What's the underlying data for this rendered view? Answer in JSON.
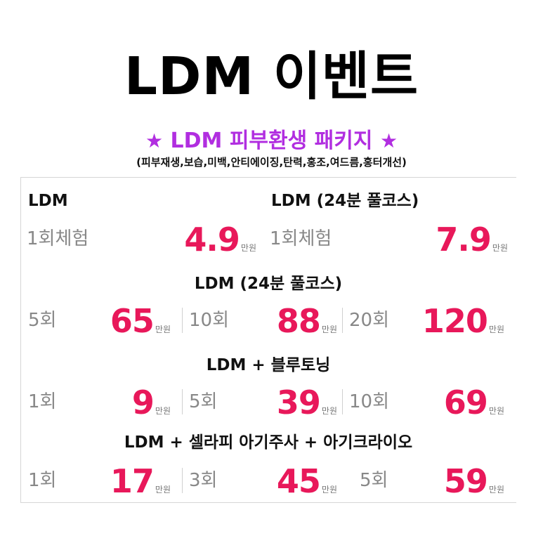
{
  "title": "LDM 이벤트",
  "subtitle": {
    "star": "★",
    "text": "LDM 피부환생 패키지"
  },
  "tags": "(피부재생,보습,미백,안티에이징,탄력,홍조,여드름,홍터개선)",
  "unit": "만원",
  "section1": {
    "left": {
      "header": "LDM",
      "label": "1회체험",
      "price": "4.9"
    },
    "right": {
      "header": "LDM (24분 풀코스)",
      "label": "1회체험",
      "price": "7.9"
    }
  },
  "section2": {
    "header": "LDM (24분 풀코스)",
    "items": [
      {
        "label": "5회",
        "price": "65"
      },
      {
        "label": "10회",
        "price": "88"
      },
      {
        "label": "20회",
        "price": "120"
      }
    ]
  },
  "section3": {
    "header": "LDM + 블루토닝",
    "items": [
      {
        "label": "1회",
        "price": "9"
      },
      {
        "label": "5회",
        "price": "39"
      },
      {
        "label": "10회",
        "price": "69"
      }
    ]
  },
  "section4": {
    "header": "LDM + 셀라피 아기주사 + 아기크라이오",
    "items": [
      {
        "label": "1회",
        "price": "17"
      },
      {
        "label": "3회",
        "price": "45"
      },
      {
        "label": "5회",
        "price": "59"
      }
    ]
  }
}
